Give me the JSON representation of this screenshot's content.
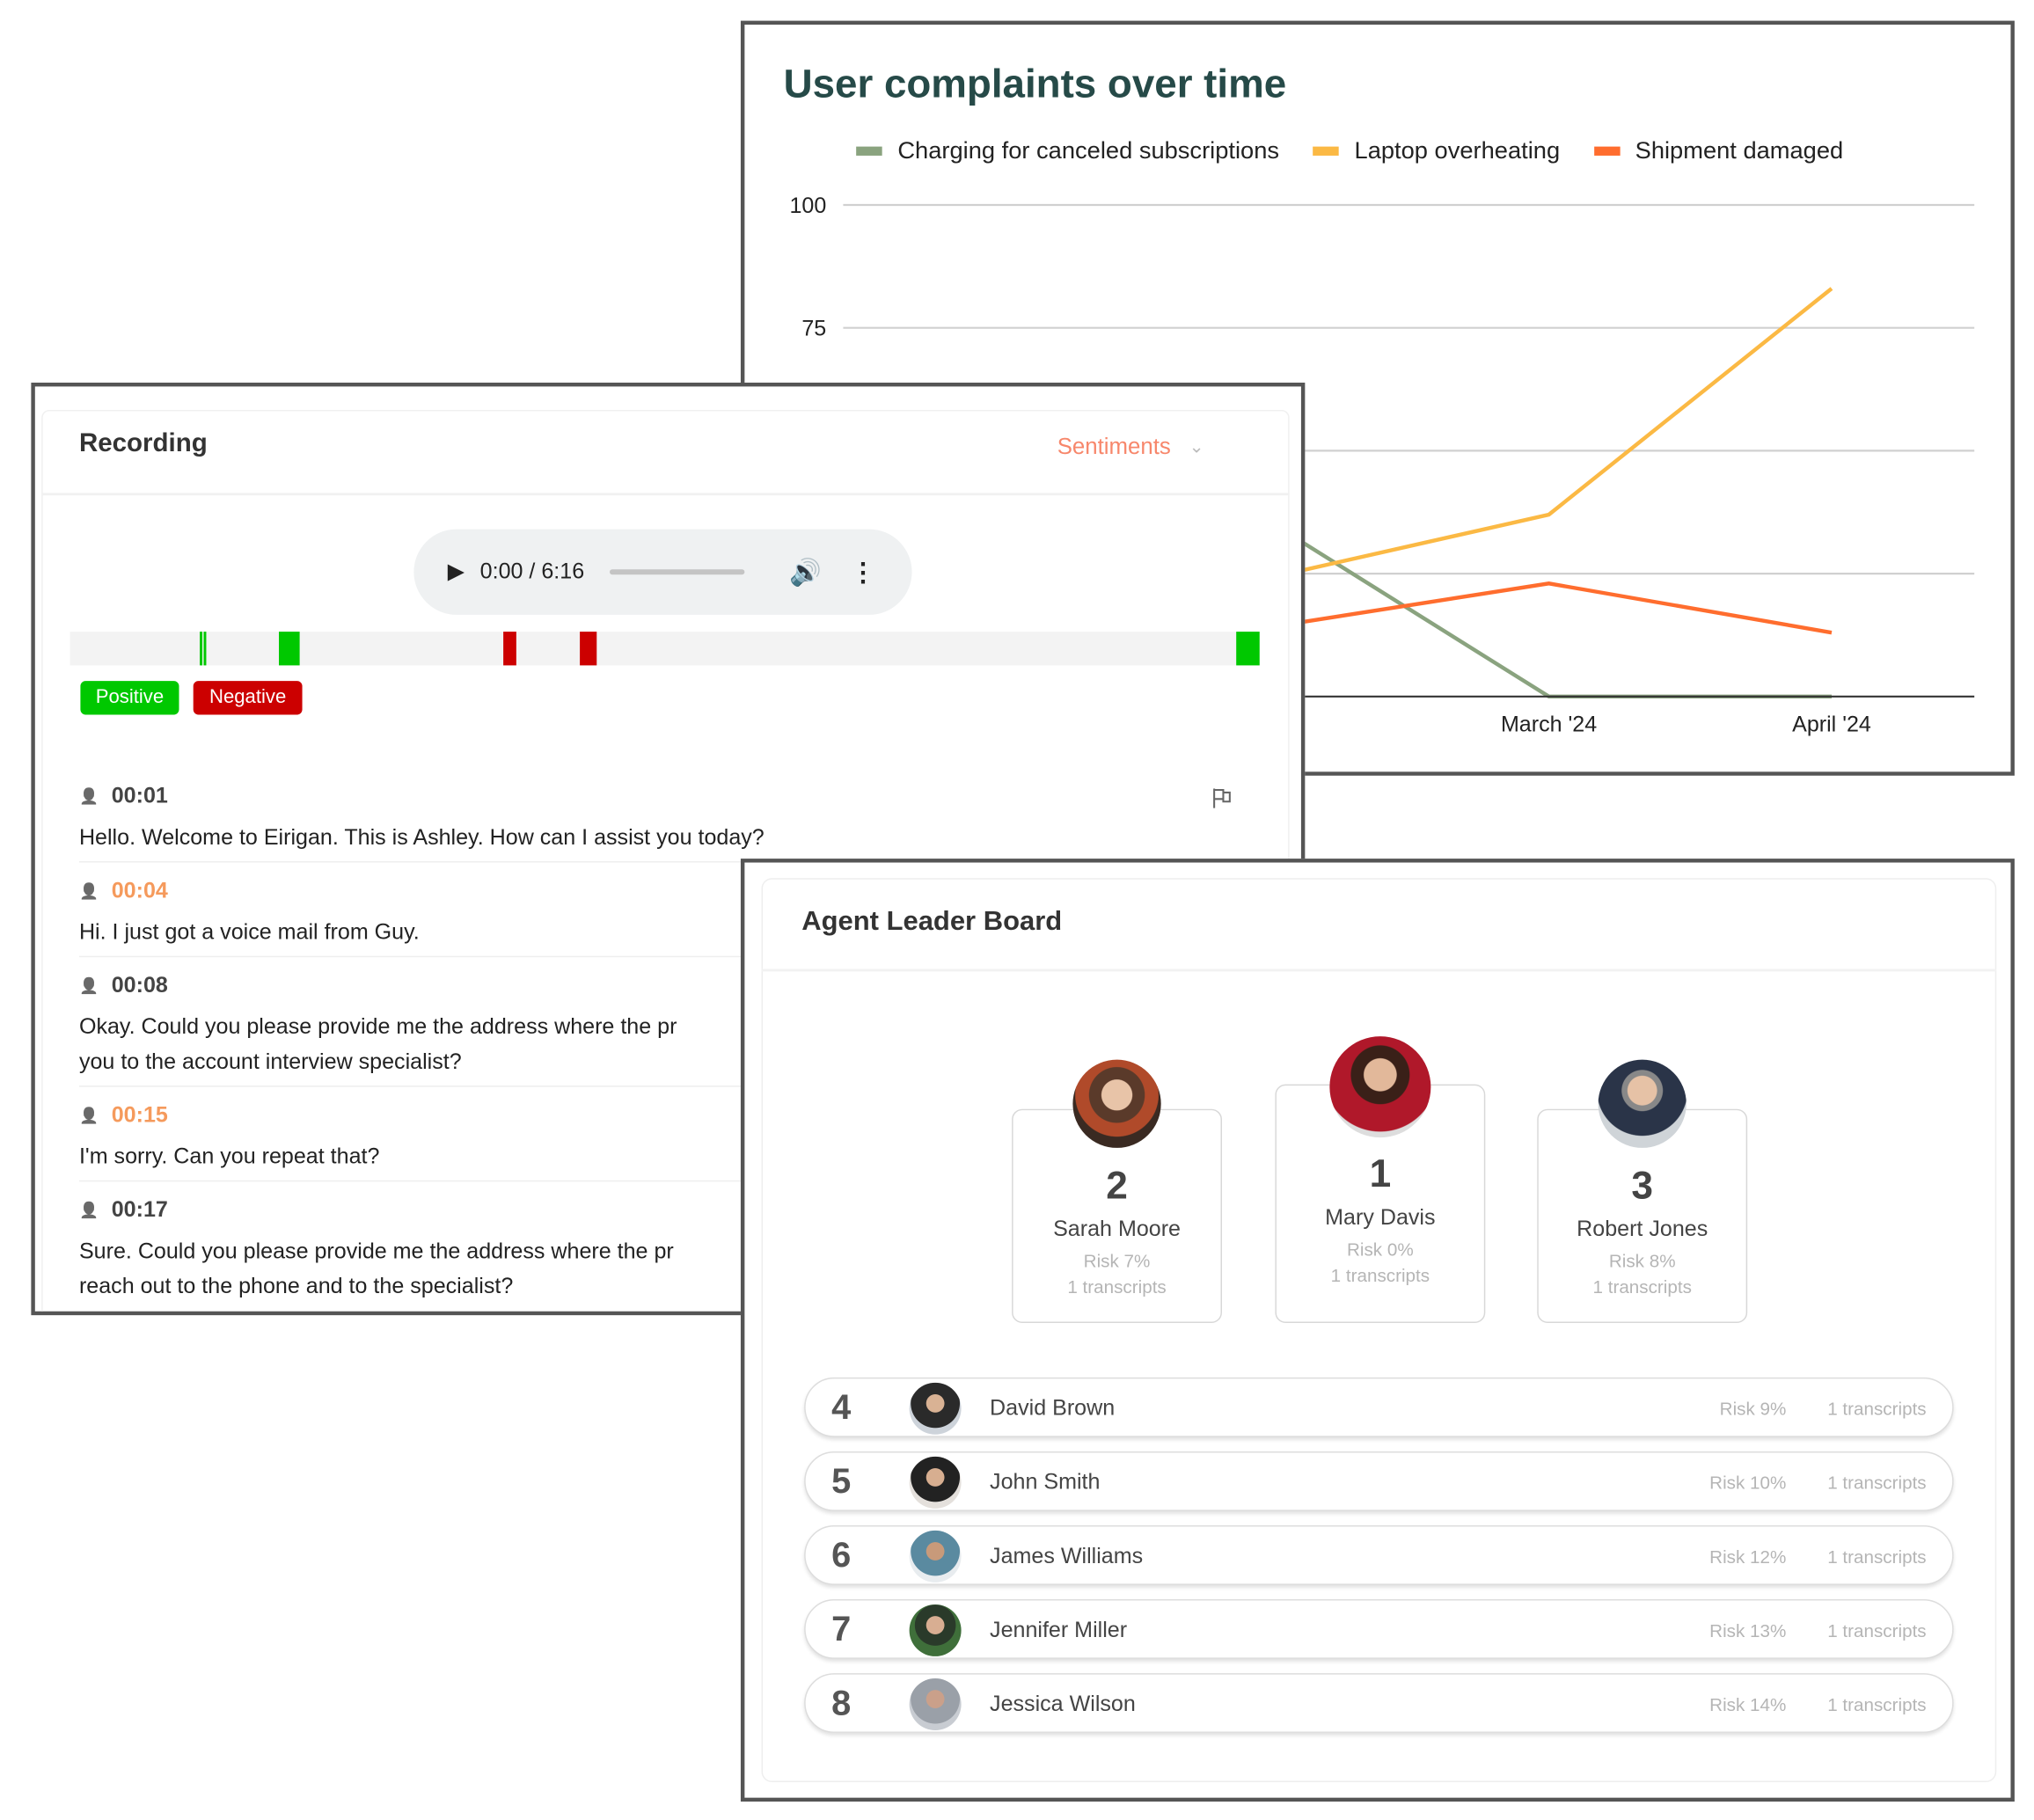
{
  "chart": {
    "title": "User complaints over time",
    "colors": {
      "charging": "#8aa37f",
      "laptop": "#fbb944",
      "shipment": "#ff6d2e"
    }
  },
  "chart_data": {
    "type": "line",
    "title": "User complaints over time",
    "x": [
      "",
      "March '24",
      "April '24"
    ],
    "y_ticks": [
      "100",
      "75"
    ],
    "ylim": [
      0,
      100
    ],
    "grid": true,
    "legend_position": "top",
    "series": [
      {
        "name": "Charging for canceled subscriptions",
        "values": [
          36,
          0,
          0
        ]
      },
      {
        "name": "Laptop overheating",
        "values": [
          24,
          37,
          83
        ]
      },
      {
        "name": "Shipment damaged",
        "values": [
          14,
          23,
          13
        ]
      }
    ]
  },
  "recording": {
    "title": "Recording",
    "filter_label": "Sentiments",
    "player": {
      "time": "0:00 / 6:16",
      "progress": 0
    },
    "badges": {
      "positive": "Positive",
      "negative": "Negative"
    },
    "colors": {
      "positive": "#00c800",
      "negative": "#cc0000",
      "agent": "#444444",
      "customer": "#f59a5c"
    },
    "transcript": [
      {
        "time": "00:01",
        "speaker": "agent",
        "lines": [
          "Hello. Welcome to Eirigan. This is Ashley. How can I assist you today?"
        ]
      },
      {
        "time": "00:04",
        "speaker": "customer",
        "lines": [
          "Hi. I just got a voice mail from Guy."
        ]
      },
      {
        "time": "00:08",
        "speaker": "agent",
        "lines": [
          "Okay. Could you please provide me the address where the pr",
          "you to the account interview specialist?"
        ]
      },
      {
        "time": "00:15",
        "speaker": "customer",
        "lines": [
          "I'm sorry. Can you repeat that?"
        ]
      },
      {
        "time": "00:17",
        "speaker": "agent",
        "lines": [
          "Sure. Could you please provide me the address where the pr",
          "reach out to the phone and to the specialist?"
        ]
      }
    ]
  },
  "leaderboard": {
    "title": "Agent Leader Board",
    "podium": [
      {
        "rank": "2",
        "name": "Sarah Moore",
        "risk": "Risk 7%",
        "transcripts": "1 transcripts"
      },
      {
        "rank": "1",
        "name": "Mary Davis",
        "risk": "Risk 0%",
        "transcripts": "1 transcripts"
      },
      {
        "rank": "3",
        "name": "Robert Jones",
        "risk": "Risk 8%",
        "transcripts": "1 transcripts"
      }
    ],
    "rows": [
      {
        "rank": "4",
        "name": "David Brown",
        "risk": "Risk 9%",
        "transcripts": "1 transcripts"
      },
      {
        "rank": "5",
        "name": "John Smith",
        "risk": "Risk 10%",
        "transcripts": "1 transcripts"
      },
      {
        "rank": "6",
        "name": "James Williams",
        "risk": "Risk 12%",
        "transcripts": "1 transcripts"
      },
      {
        "rank": "7",
        "name": "Jennifer Miller",
        "risk": "Risk 13%",
        "transcripts": "1 transcripts"
      },
      {
        "rank": "8",
        "name": "Jessica Wilson",
        "risk": "Risk 14%",
        "transcripts": "1 transcripts"
      }
    ]
  }
}
